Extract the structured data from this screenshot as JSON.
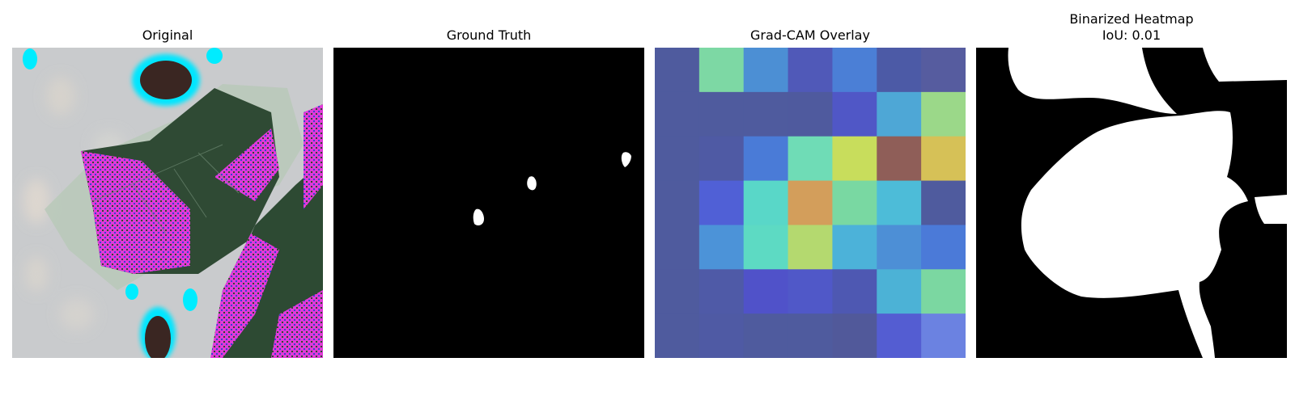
{
  "panels": [
    {
      "title": "Original"
    },
    {
      "title": "Ground Truth"
    },
    {
      "title": "Grad-CAM Overlay"
    },
    {
      "title": "Binarized Heatmap",
      "subtitle": "IoU: 0.01"
    }
  ],
  "gradcam_grid": [
    [
      "#4f5b9e",
      "#7dd8a4",
      "#4c8fd4",
      "#5059b8",
      "#4b7fd6",
      "#4c5aa6",
      "#565c9f"
    ],
    [
      "#4f5b9e",
      "#4f5b9e",
      "#4f5b9e",
      "#4f5a9e",
      "#5057c6",
      "#4ea7d6",
      "#9bd889"
    ],
    [
      "#4f5b9e",
      "#4f5aa4",
      "#4a7bd7",
      "#6fdcb6",
      "#c8dd5c",
      "#8f5e58",
      "#d6c157"
    ],
    [
      "#4f5b9e",
      "#5060d6",
      "#59d7c8",
      "#d39e5b",
      "#79d8a2",
      "#4dbcd8",
      "#4f5b9e"
    ],
    [
      "#4f5b9e",
      "#4c93d8",
      "#5ddac3",
      "#b4d96f",
      "#4cb2d9",
      "#4d8fd6",
      "#4b7ad8"
    ],
    [
      "#4f5b9e",
      "#4f5aa7",
      "#5052c9",
      "#5058c8",
      "#4e58b2",
      "#4cb2d6",
      "#7bd7a1"
    ],
    [
      "#4f5b9e",
      "#4f5aa4",
      "#4f5b9e",
      "#4f5b9e",
      "#51599a",
      "#545dd2",
      "#6b82e1"
    ]
  ]
}
